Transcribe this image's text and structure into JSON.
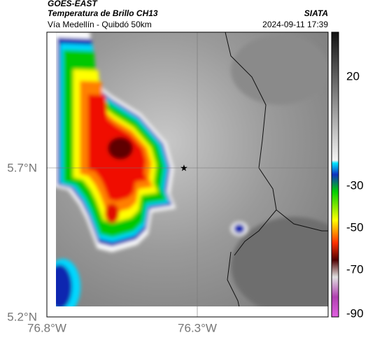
{
  "header": {
    "source": "GOES-EAST",
    "title": "Temperatura de Brillo CH13",
    "subtitle": "Vía Medellín - Quibdó 50km",
    "agency": "SIATA",
    "datetime": "2024-09-11 17:39"
  },
  "axes": {
    "x_labels": [
      "76.8°W",
      "76.3°W"
    ],
    "y_labels": [
      "5.7°N",
      "5.2°N"
    ]
  },
  "colorbar": {
    "labels": [
      "20",
      "-30",
      "-50",
      "-70",
      "-90"
    ]
  }
}
